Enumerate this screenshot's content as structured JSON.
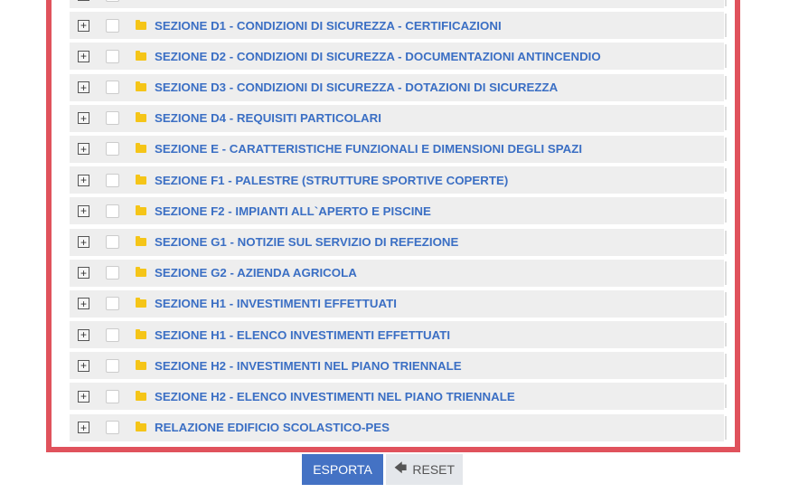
{
  "sections": [
    {
      "label": ""
    },
    {
      "label": "SEZIONE D1 - CONDIZIONI DI SICUREZZA - CERTIFICAZIONI"
    },
    {
      "label": "SEZIONE D2 - CONDIZIONI DI SICUREZZA - DOCUMENTAZIONI ANTINCENDIO"
    },
    {
      "label": "SEZIONE D3 - CONDIZIONI DI SICUREZZA - DOTAZIONI DI SICUREZZA"
    },
    {
      "label": "SEZIONE D4 - REQUISITI PARTICOLARI"
    },
    {
      "label": "SEZIONE E - CARATTERISTICHE FUNZIONALI E DIMENSIONI DEGLI SPAZI"
    },
    {
      "label": "SEZIONE F1 - PALESTRE (STRUTTURE SPORTIVE COPERTE)"
    },
    {
      "label": "SEZIONE F2 - IMPIANTI ALL`APERTO E PISCINE"
    },
    {
      "label": "SEZIONE G1 - NOTIZIE SUL SERVIZIO DI REFEZIONE"
    },
    {
      "label": "SEZIONE G2 - AZIENDA AGRICOLA"
    },
    {
      "label": "SEZIONE H1 - INVESTIMENTI EFFETTUATI"
    },
    {
      "label": "SEZIONE H1 - ELENCO INVESTIMENTI EFFETTUATI"
    },
    {
      "label": "SEZIONE H2 - INVESTIMENTI NEL PIANO TRIENNALE"
    },
    {
      "label": "SEZIONE H2 - ELENCO INVESTIMENTI NEL PIANO TRIENNALE"
    },
    {
      "label": "RELAZIONE EDIFICIO SCOLASTICO-PES"
    }
  ],
  "buttons": {
    "export": "ESPORTA",
    "reset": "RESET"
  },
  "colors": {
    "accent": "#4472c4",
    "frame": "#e0525c",
    "folder": "#f5c518",
    "link": "#3b6fc4"
  }
}
